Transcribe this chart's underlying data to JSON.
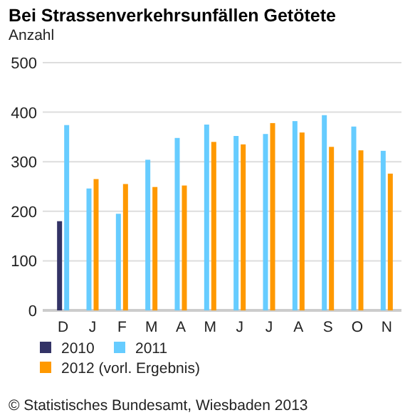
{
  "chart_data": {
    "type": "bar",
    "title": "Bei Strassenverkehrsunfällen Getötete",
    "subtitle": "Anzahl",
    "categories": [
      "D",
      "J",
      "F",
      "M",
      "A",
      "M",
      "J",
      "J",
      "A",
      "S",
      "O",
      "N"
    ],
    "series": [
      {
        "name": "2010",
        "color": "#333366",
        "values": [
          180,
          null,
          null,
          null,
          null,
          null,
          null,
          null,
          null,
          null,
          null,
          null
        ]
      },
      {
        "name": "2011",
        "color": "#66ccff",
        "values": [
          374,
          246,
          195,
          304,
          348,
          375,
          352,
          356,
          382,
          394,
          371,
          322
        ]
      },
      {
        "name": "2012 (vorl. Ergebnis)",
        "color": "#ff9900",
        "values": [
          null,
          265,
          255,
          249,
          252,
          340,
          335,
          378,
          359,
          330,
          323,
          276
        ]
      }
    ],
    "ylim": [
      0,
      500
    ],
    "yticks": [
      0,
      100,
      200,
      300,
      400,
      500
    ],
    "grid": "y",
    "legend": "bottom",
    "annotations": [
      "© Statistisches Bundesamt, Wiesbaden 2013"
    ]
  }
}
